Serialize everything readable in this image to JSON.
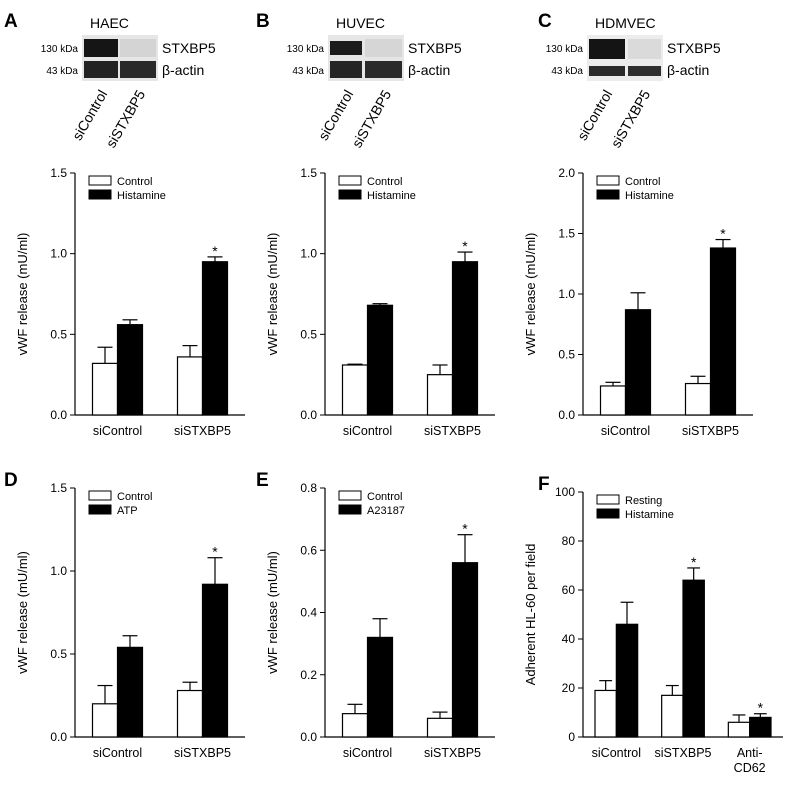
{
  "blots": [
    {
      "panel": "A",
      "cell": "HAEC",
      "markers": [
        "130 kDa",
        "43 kDa"
      ],
      "proteins": [
        "STXBP5",
        "β-actin"
      ],
      "lanes": [
        "siControl",
        "siSTXBP5"
      ]
    },
    {
      "panel": "B",
      "cell": "HUVEC",
      "markers": [
        "130 kDa",
        "43 kDa"
      ],
      "proteins": [
        "STXBP5",
        "β-actin"
      ],
      "lanes": [
        "siControl",
        "siSTXBP5"
      ]
    },
    {
      "panel": "C",
      "cell": "HDMVEC",
      "markers": [
        "130 kDa",
        "43 kDa"
      ],
      "proteins": [
        "STXBP5",
        "β-actin"
      ],
      "lanes": [
        "siControl",
        "siSTXBP5"
      ]
    }
  ],
  "chart_data": [
    {
      "type": "bar",
      "y_label": "vWF release (mU/ml)",
      "categories": [
        "siControl",
        "siSTXBP5"
      ],
      "series": [
        {
          "name": "Control",
          "color": "#ffffff",
          "values": [
            0.32,
            0.36
          ],
          "errors": [
            0.1,
            0.07
          ],
          "significance": [
            null,
            null
          ]
        },
        {
          "name": "Histamine",
          "color": "#000000",
          "values": [
            0.56,
            0.95
          ],
          "errors": [
            0.03,
            0.03
          ],
          "significance": [
            null,
            "*"
          ]
        }
      ],
      "ylim": [
        0,
        1.5
      ],
      "yticks": [
        {
          "value": 0,
          "label": "0.0"
        },
        0.5,
        {
          "value": 1,
          "label": "1.0"
        },
        1.5
      ]
    },
    {
      "type": "bar",
      "y_label": "vWF release (mU/ml)",
      "categories": [
        "siControl",
        "siSTXBP5"
      ],
      "series": [
        {
          "name": "Control",
          "color": "#ffffff",
          "values": [
            0.31,
            0.25
          ],
          "errors": [
            0.005,
            0.06
          ],
          "significance": [
            null,
            null
          ]
        },
        {
          "name": "Histamine",
          "color": "#000000",
          "values": [
            0.68,
            0.95
          ],
          "errors": [
            0.01,
            0.06
          ],
          "significance": [
            null,
            "*"
          ]
        }
      ],
      "ylim": [
        0,
        1.5
      ],
      "yticks": [
        {
          "value": 0,
          "label": "0.0"
        },
        0.5,
        {
          "value": 1,
          "label": "1.0"
        },
        1.5
      ]
    },
    {
      "type": "bar",
      "y_label": "vWF release (mU/ml)",
      "categories": [
        "siControl",
        "siSTXBP5"
      ],
      "series": [
        {
          "name": "Control",
          "color": "#ffffff",
          "values": [
            0.24,
            0.26
          ],
          "errors": [
            0.03,
            0.06
          ],
          "significance": [
            null,
            null
          ]
        },
        {
          "name": "Histamine",
          "color": "#000000",
          "values": [
            0.87,
            1.38
          ],
          "errors": [
            0.14,
            0.07
          ],
          "significance": [
            null,
            "*"
          ]
        }
      ],
      "ylim": [
        0,
        2
      ],
      "yticks": [
        {
          "value": 0,
          "label": "0.0"
        },
        0.5,
        {
          "value": 1,
          "label": "1.0"
        },
        1.5,
        {
          "value": 2,
          "label": "2.0"
        }
      ]
    },
    {
      "type": "bar",
      "panel": "D",
      "y_label": "vWF release (mU/ml)",
      "categories": [
        "siControl",
        "siSTXBP5"
      ],
      "series": [
        {
          "name": "Control",
          "color": "#ffffff",
          "values": [
            0.2,
            0.28
          ],
          "errors": [
            0.11,
            0.05
          ],
          "significance": [
            null,
            null
          ]
        },
        {
          "name": "ATP",
          "color": "#000000",
          "values": [
            0.54,
            0.92
          ],
          "errors": [
            0.07,
            0.16
          ],
          "significance": [
            null,
            "*"
          ]
        }
      ],
      "ylim": [
        0,
        1.5
      ],
      "yticks": [
        {
          "value": 0,
          "label": "0.0"
        },
        0.5,
        {
          "value": 1,
          "label": "1.0"
        },
        1.5
      ]
    },
    {
      "type": "bar",
      "panel": "E",
      "y_label": "vWF release (mU/ml)",
      "categories": [
        "siControl",
        "siSTXBP5"
      ],
      "series": [
        {
          "name": "Control",
          "color": "#ffffff",
          "values": [
            0.075,
            0.06
          ],
          "errors": [
            0.03,
            0.02
          ],
          "significance": [
            null,
            null
          ]
        },
        {
          "name": "A23187",
          "color": "#000000",
          "values": [
            0.32,
            0.56
          ],
          "errors": [
            0.06,
            0.09
          ],
          "significance": [
            null,
            "*"
          ]
        }
      ],
      "ylim": [
        0,
        0.8
      ],
      "yticks": [
        {
          "value": 0,
          "label": "0.0"
        },
        0.2,
        0.4,
        0.6,
        0.8
      ]
    },
    {
      "type": "bar",
      "panel": "F",
      "y_label": "Adherent HL-60 per field",
      "categories": [
        "siControl",
        "siSTXBP5",
        "Anti-CD62"
      ],
      "series": [
        {
          "name": "Resting",
          "color": "#ffffff",
          "values": [
            19,
            17,
            6
          ],
          "errors": [
            4,
            4,
            3
          ],
          "significance": [
            null,
            null,
            null
          ]
        },
        {
          "name": "Histamine",
          "color": "#000000",
          "values": [
            46,
            64,
            8
          ],
          "errors": [
            9,
            5,
            1.5
          ],
          "significance": [
            null,
            "*",
            "*"
          ]
        }
      ],
      "ylim": [
        0,
        100
      ],
      "yticks": [
        0,
        20,
        40,
        60,
        80,
        100
      ]
    }
  ]
}
